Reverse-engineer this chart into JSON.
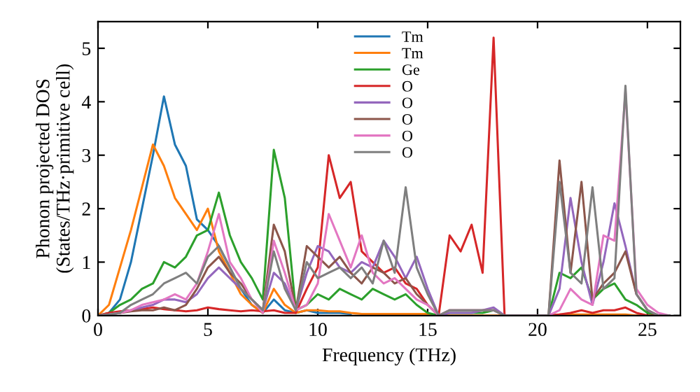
{
  "chart_data": {
    "type": "line",
    "xlabel": "Frequency (THz)",
    "ylabel": "Phonon projected DOS\n(States/THz·primitive cell)",
    "x": [
      0,
      0.5,
      1,
      1.5,
      2,
      2.5,
      3,
      3.5,
      4,
      4.5,
      5,
      5.5,
      6,
      6.5,
      7,
      7.5,
      8,
      8.5,
      9,
      9.5,
      10,
      10.5,
      11,
      11.5,
      12,
      12.5,
      13,
      13.5,
      14,
      14.5,
      15,
      15.5,
      16,
      16.5,
      17,
      17.5,
      18,
      18.5,
      19,
      19.5,
      20,
      20.5,
      21,
      21.5,
      22,
      22.5,
      23,
      23.5,
      24,
      24.5,
      25,
      25.5,
      26
    ],
    "xlim": [
      0,
      26.5
    ],
    "ylim": [
      0,
      5.5
    ],
    "xticks": [
      0,
      5,
      10,
      15,
      20,
      25
    ],
    "yticks": [
      0,
      1,
      2,
      3,
      4,
      5
    ],
    "grid": false,
    "legend": "top",
    "marker": "none",
    "line_style": "solid",
    "series": [
      {
        "name": "Tm",
        "color": "#1f77b4",
        "values": [
          null,
          0.05,
          0.3,
          1.0,
          2.0,
          3.0,
          4.1,
          3.2,
          2.8,
          1.8,
          1.6,
          1.3,
          0.9,
          0.5,
          0.2,
          0.05,
          0.3,
          0.1,
          0.05,
          0.1,
          0.05,
          0.05,
          0.05,
          0.03,
          null,
          null,
          null,
          null,
          null,
          null,
          null,
          null,
          null,
          null,
          null,
          null,
          null,
          null,
          null,
          null,
          null,
          null,
          null,
          null,
          null,
          null,
          null,
          null,
          null,
          null,
          null,
          null,
          null
        ]
      },
      {
        "name": "Tm",
        "color": "#ff7f0e",
        "values": [
          0,
          0.2,
          0.9,
          1.6,
          2.4,
          3.2,
          2.8,
          2.2,
          1.9,
          1.6,
          2.0,
          1.2,
          0.8,
          0.4,
          0.2,
          0.05,
          0.5,
          0.2,
          0.05,
          0.1,
          0.1,
          0.08,
          0.08,
          0.05,
          0.03,
          0.03,
          0.03,
          0.03,
          0.03,
          0.03,
          0.03,
          0,
          0,
          0,
          0,
          0,
          0,
          0,
          0,
          0,
          0,
          0,
          0.02,
          0.02,
          0.02,
          0.02,
          0.02,
          0.02,
          0.02,
          0,
          0,
          null,
          null
        ]
      },
      {
        "name": "Ge",
        "color": "#2ca02c",
        "values": [
          0,
          0.05,
          0.2,
          0.3,
          0.5,
          0.6,
          1.0,
          0.9,
          1.1,
          1.5,
          1.6,
          2.3,
          1.5,
          1.0,
          0.7,
          0.3,
          3.1,
          2.2,
          0.1,
          0.2,
          0.4,
          0.3,
          0.5,
          0.4,
          0.3,
          0.5,
          0.4,
          0.3,
          0.4,
          0.2,
          0.05,
          0,
          0.05,
          0.05,
          0.05,
          0.05,
          0.1,
          0,
          0,
          0,
          0,
          0,
          0.8,
          0.7,
          0.9,
          0.3,
          0.5,
          0.6,
          0.3,
          0.2,
          0.05,
          0,
          0
        ]
      },
      {
        "name": "O",
        "color": "#d62728",
        "values": [
          0,
          0.05,
          0.08,
          0.1,
          0.12,
          0.15,
          0.12,
          0.1,
          0.08,
          0.1,
          0.15,
          0.12,
          0.1,
          0.08,
          0.1,
          0.08,
          0.1,
          0.05,
          0.05,
          0.5,
          0.9,
          3.0,
          2.2,
          2.5,
          1.2,
          1.0,
          0.8,
          0.9,
          0.6,
          0.5,
          0.2,
          0,
          1.5,
          1.2,
          1.7,
          0.8,
          5.2,
          0,
          0,
          0,
          0,
          0,
          0.02,
          0.05,
          0.1,
          0.05,
          0.1,
          0.1,
          0.15,
          0.05,
          0,
          0,
          0
        ]
      },
      {
        "name": "O",
        "color": "#9467bd",
        "values": [
          0,
          0.02,
          0.05,
          0.1,
          0.15,
          0.2,
          0.3,
          0.3,
          0.25,
          0.4,
          0.7,
          0.9,
          0.7,
          0.5,
          0.3,
          0.1,
          0.8,
          0.6,
          0.1,
          0.8,
          1.3,
          1.2,
          0.9,
          0.8,
          1.0,
          0.9,
          1.4,
          1.1,
          0.7,
          1.1,
          0.5,
          0,
          0.05,
          0.05,
          0.05,
          0.1,
          0.15,
          0,
          0,
          0,
          0,
          0,
          0.5,
          2.2,
          1.0,
          0.2,
          1.0,
          2.1,
          1.3,
          0.4,
          0.1,
          0,
          0
        ]
      },
      {
        "name": "O",
        "color": "#8c564b",
        "values": [
          0,
          0.02,
          0.05,
          0.08,
          0.1,
          0.1,
          0.15,
          0.1,
          0.2,
          0.5,
          0.9,
          1.1,
          0.8,
          0.6,
          0.3,
          0.1,
          1.7,
          1.2,
          0.1,
          1.3,
          1.1,
          0.9,
          1.1,
          0.8,
          0.6,
          0.9,
          0.8,
          0.6,
          0.7,
          0.4,
          0.2,
          0,
          0.1,
          0.1,
          0.1,
          0.1,
          0.1,
          0,
          0,
          0,
          0,
          0,
          2.9,
          0.8,
          2.5,
          0.3,
          0.6,
          0.8,
          1.2,
          0.4,
          0.1,
          0,
          0
        ]
      },
      {
        "name": "O",
        "color": "#e377c2",
        "values": [
          0,
          0.02,
          0.05,
          0.1,
          0.2,
          0.25,
          0.3,
          0.4,
          0.3,
          0.6,
          1.2,
          1.9,
          1.0,
          0.7,
          0.3,
          0.05,
          1.4,
          0.8,
          0.1,
          0.2,
          0.6,
          1.9,
          1.4,
          0.9,
          1.5,
          0.8,
          0.6,
          0.7,
          0.5,
          0.3,
          0.2,
          0,
          0.1,
          0.1,
          0.1,
          0.1,
          0.1,
          0,
          0,
          0,
          0,
          0,
          0.1,
          0.5,
          0.3,
          0.2,
          1.5,
          1.4,
          4.2,
          0.5,
          0.2,
          0.05,
          0
        ]
      },
      {
        "name": "O",
        "color": "#7f7f7f",
        "values": [
          0,
          0.02,
          0.05,
          0.2,
          0.3,
          0.4,
          0.6,
          0.7,
          0.8,
          0.6,
          1.1,
          1.3,
          0.9,
          0.5,
          0.3,
          0.1,
          1.2,
          0.5,
          0.1,
          1.0,
          0.7,
          0.8,
          0.9,
          0.7,
          0.9,
          0.6,
          1.4,
          0.8,
          2.4,
          0.9,
          0.4,
          0,
          0.1,
          0.1,
          0.1,
          0.1,
          0.1,
          0,
          0,
          0,
          0,
          0,
          2.5,
          0.8,
          0.6,
          2.4,
          0.5,
          0.7,
          4.3,
          0.4,
          0.1,
          0,
          0
        ]
      }
    ]
  }
}
